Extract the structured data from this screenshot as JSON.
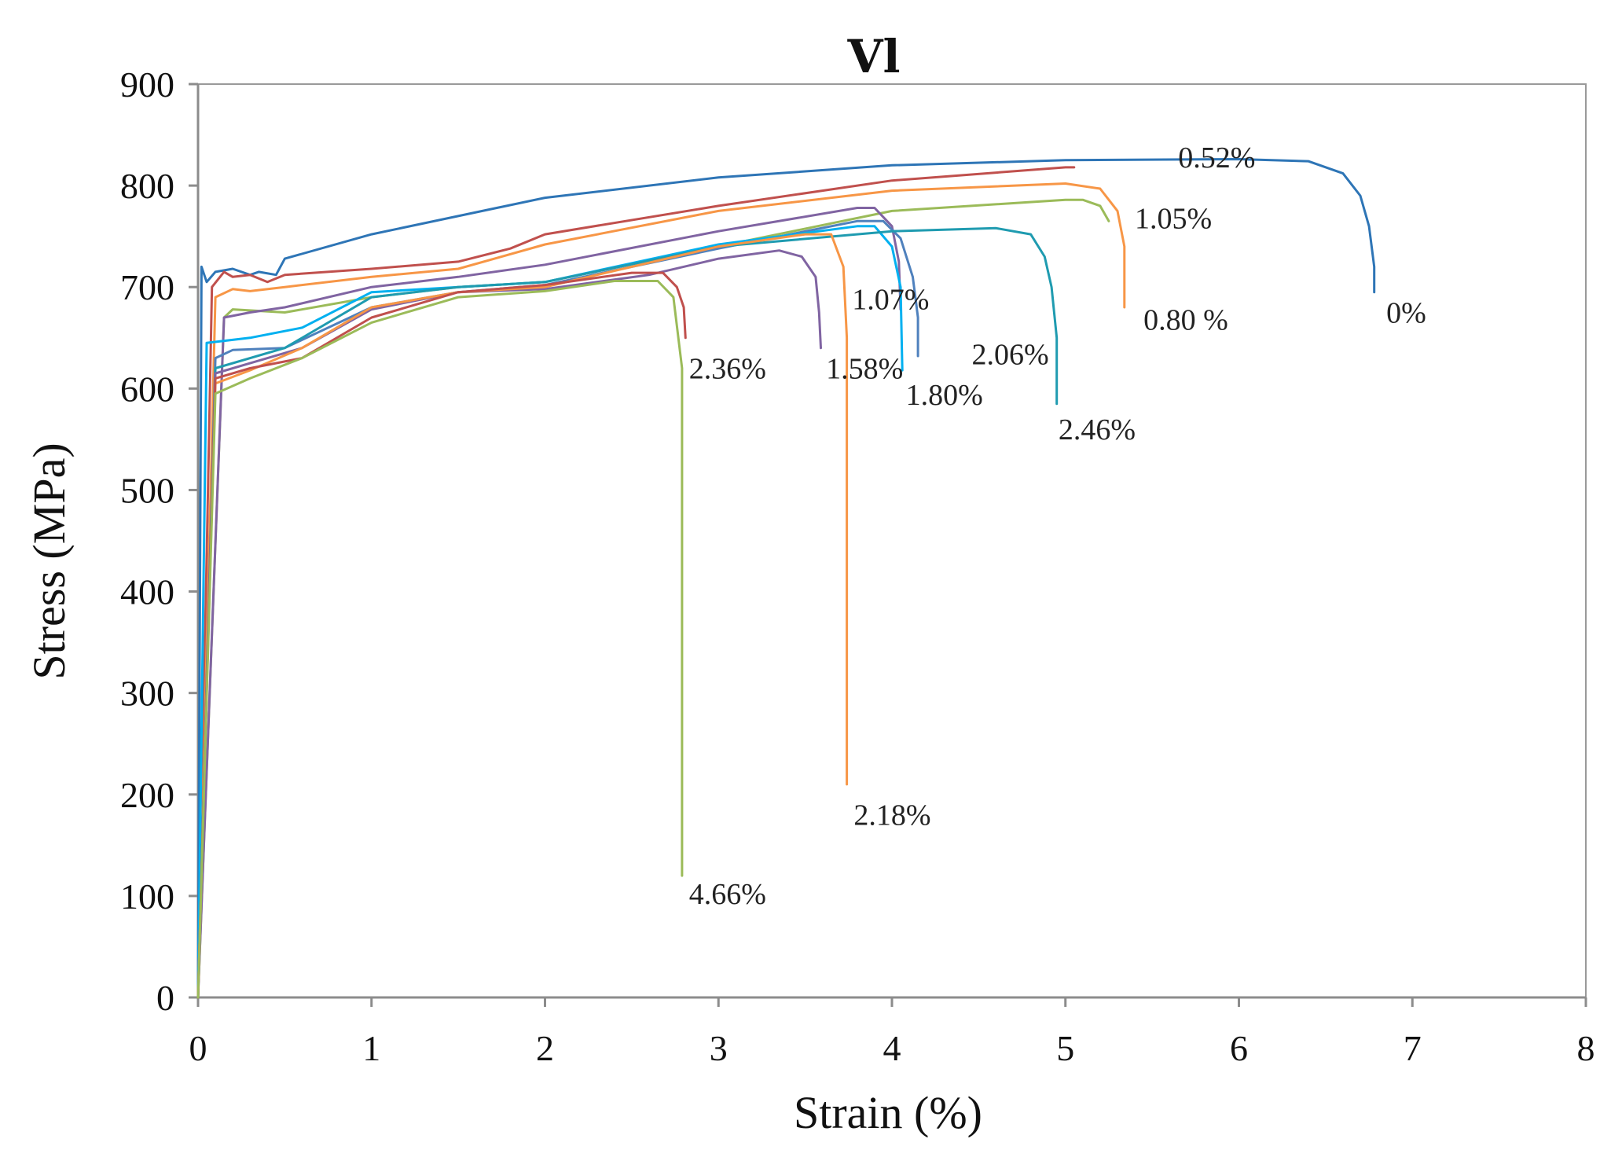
{
  "chart_data": {
    "type": "line",
    "title": "Vl",
    "xlabel": "Strain (%)",
    "ylabel": "Stress (MPa)",
    "xlim": [
      0,
      8
    ],
    "ylim": [
      0,
      900
    ],
    "xticks": [
      0,
      1,
      2,
      3,
      4,
      5,
      6,
      7,
      8
    ],
    "yticks": [
      0,
      100,
      200,
      300,
      400,
      500,
      600,
      700,
      800,
      900
    ],
    "grid": false,
    "legend": "none",
    "series": [
      {
        "name": "0%",
        "color": "#2e75b6",
        "x": [
          0,
          0.02,
          0.05,
          0.1,
          0.2,
          0.3,
          0.35,
          0.45,
          0.5,
          1,
          2,
          3,
          4,
          5,
          6,
          6.4,
          6.6,
          6.7,
          6.75,
          6.78,
          6.78
        ],
        "y": [
          0,
          720,
          705,
          715,
          718,
          712,
          715,
          712,
          728,
          752,
          788,
          808,
          820,
          825,
          826,
          824,
          812,
          790,
          760,
          720,
          695
        ]
      },
      {
        "name": "0.52%",
        "color": "#c0504d",
        "x": [
          0,
          0.08,
          0.15,
          0.2,
          0.3,
          0.4,
          0.5,
          1,
          1.5,
          1.8,
          2,
          3,
          4,
          5,
          5.05
        ],
        "y": [
          0,
          700,
          715,
          710,
          712,
          705,
          712,
          718,
          725,
          738,
          752,
          780,
          805,
          818,
          818
        ]
      },
      {
        "name": "1.05%",
        "color": "#9bbb59",
        "x": [
          0,
          0.15,
          0.2,
          0.5,
          1,
          1.5,
          2,
          3,
          4,
          5,
          5.1,
          5.2,
          5.25
        ],
        "y": [
          0,
          670,
          678,
          675,
          690,
          700,
          705,
          740,
          775,
          786,
          786,
          780,
          765
        ]
      },
      {
        "name": "0.80 %",
        "color": "#f79646",
        "x": [
          0,
          0.1,
          0.2,
          0.3,
          0.5,
          1,
          1.5,
          2,
          3,
          4,
          5,
          5.2,
          5.3,
          5.34,
          5.34
        ],
        "y": [
          0,
          690,
          698,
          696,
          700,
          710,
          718,
          742,
          775,
          795,
          802,
          797,
          775,
          740,
          680
        ]
      },
      {
        "name": "1.07%",
        "color": "#8064a2",
        "x": [
          0,
          0.15,
          0.3,
          0.5,
          1,
          1.5,
          2,
          3,
          3.8,
          3.9,
          4,
          4.04,
          4.05
        ],
        "y": [
          0,
          670,
          675,
          680,
          700,
          710,
          722,
          755,
          778,
          778,
          760,
          725,
          678
        ]
      },
      {
        "name": "2.06%",
        "color": "#4f81bd",
        "x": [
          0,
          0.1,
          0.2,
          0.5,
          1,
          1.5,
          2,
          3,
          3.8,
          3.95,
          4.05,
          4.12,
          4.15,
          4.15
        ],
        "y": [
          0,
          630,
          638,
          640,
          680,
          695,
          702,
          738,
          765,
          765,
          748,
          710,
          670,
          632
        ]
      },
      {
        "name": "1.80%",
        "color": "#00b0f0",
        "x": [
          0,
          0.05,
          0.3,
          0.6,
          1,
          1.5,
          2,
          3,
          3.8,
          3.9,
          4,
          4.05,
          4.06
        ],
        "y": [
          0,
          645,
          650,
          660,
          695,
          700,
          705,
          742,
          760,
          760,
          740,
          700,
          618
        ]
      },
      {
        "name": "2.46%",
        "color": "#1f9bb0",
        "x": [
          0,
          0.1,
          0.5,
          1,
          1.5,
          2,
          3,
          4,
          4.6,
          4.8,
          4.88,
          4.92,
          4.95,
          4.95
        ],
        "y": [
          0,
          620,
          640,
          690,
          700,
          705,
          740,
          755,
          758,
          752,
          730,
          700,
          650,
          585
        ]
      },
      {
        "name": "1.58%",
        "color": "#8064a2",
        "x": [
          0,
          0.1,
          0.3,
          0.6,
          1,
          1.5,
          2,
          2.6,
          3,
          3.35,
          3.48,
          3.56,
          3.58,
          3.59
        ],
        "y": [
          0,
          615,
          625,
          640,
          678,
          695,
          698,
          712,
          728,
          736,
          730,
          710,
          675,
          640
        ]
      },
      {
        "name": "2.18%",
        "color": "#f79646",
        "x": [
          0,
          0.1,
          0.3,
          0.6,
          1,
          1.5,
          2,
          3,
          3.5,
          3.65,
          3.72,
          3.74,
          3.74
        ],
        "y": [
          0,
          605,
          618,
          640,
          680,
          695,
          700,
          740,
          752,
          752,
          720,
          650,
          210
        ]
      },
      {
        "name": "2.36%",
        "color": "#c0504d",
        "x": [
          0,
          0.1,
          0.3,
          0.6,
          1,
          1.5,
          2,
          2.5,
          2.68,
          2.76,
          2.8,
          2.81
        ],
        "y": [
          0,
          610,
          620,
          630,
          670,
          695,
          702,
          714,
          714,
          700,
          680,
          650
        ]
      },
      {
        "name": "4.66%",
        "color": "#9bbb59",
        "x": [
          0,
          0.1,
          0.3,
          0.6,
          1,
          1.5,
          2,
          2.4,
          2.65,
          2.74,
          2.79,
          2.79
        ],
        "y": [
          0,
          595,
          610,
          630,
          665,
          690,
          696,
          706,
          706,
          690,
          620,
          120
        ]
      }
    ],
    "annotations": [
      {
        "text": "0.52%",
        "x": 5.65,
        "y": 818
      },
      {
        "text": "1.05%",
        "x": 5.4,
        "y": 758
      },
      {
        "text": "0.80 %",
        "x": 5.45,
        "y": 658
      },
      {
        "text": "0%",
        "x": 6.85,
        "y": 665
      },
      {
        "text": "1.07%",
        "x": 3.77,
        "y": 678
      },
      {
        "text": "2.06%",
        "x": 4.46,
        "y": 624
      },
      {
        "text": "1.80%",
        "x": 4.08,
        "y": 584
      },
      {
        "text": "2.46%",
        "x": 4.96,
        "y": 550
      },
      {
        "text": "2.36%",
        "x": 2.83,
        "y": 610
      },
      {
        "text": "1.58%",
        "x": 3.62,
        "y": 610
      },
      {
        "text": "2.18%",
        "x": 3.78,
        "y": 170
      },
      {
        "text": "4.66%",
        "x": 2.83,
        "y": 92
      }
    ]
  }
}
